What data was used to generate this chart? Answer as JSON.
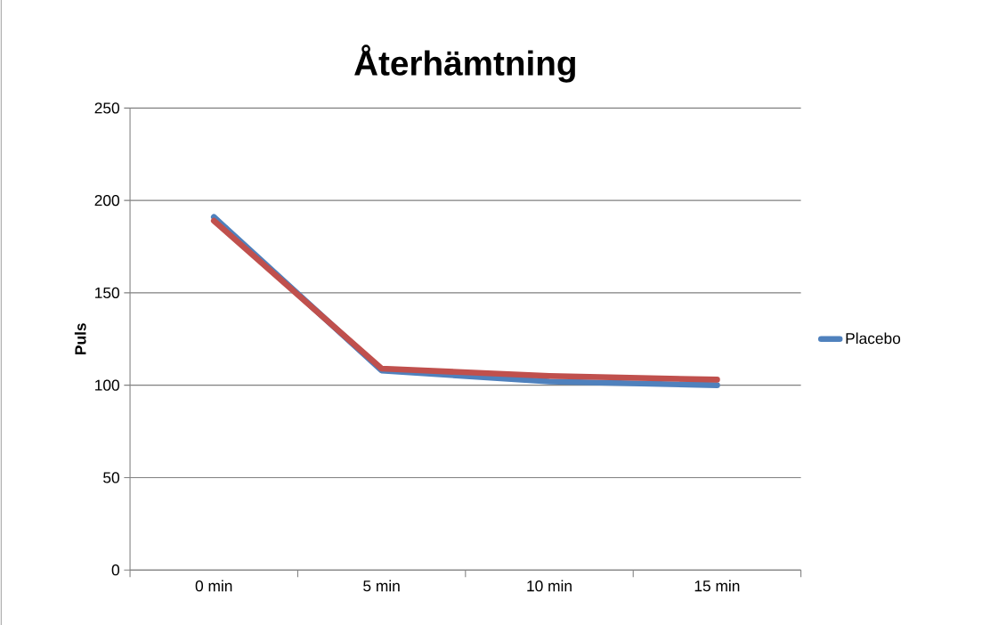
{
  "chart_data": {
    "type": "line",
    "title": "Återhämtning",
    "ylabel": "Puls",
    "categories": [
      "0 min",
      "5 min",
      "10 min",
      "15 min"
    ],
    "series": [
      {
        "name": "Placebo",
        "color": "#4f81bd",
        "values": [
          191,
          108,
          102,
          100
        ]
      },
      {
        "color": "#c0504d",
        "values": [
          189,
          109,
          105,
          103
        ]
      }
    ],
    "ylim": [
      0,
      250
    ],
    "yticks": [
      0,
      50,
      100,
      150,
      200,
      250
    ],
    "grid": "y",
    "legend": "right",
    "marker": "none",
    "line_style": "solid"
  }
}
